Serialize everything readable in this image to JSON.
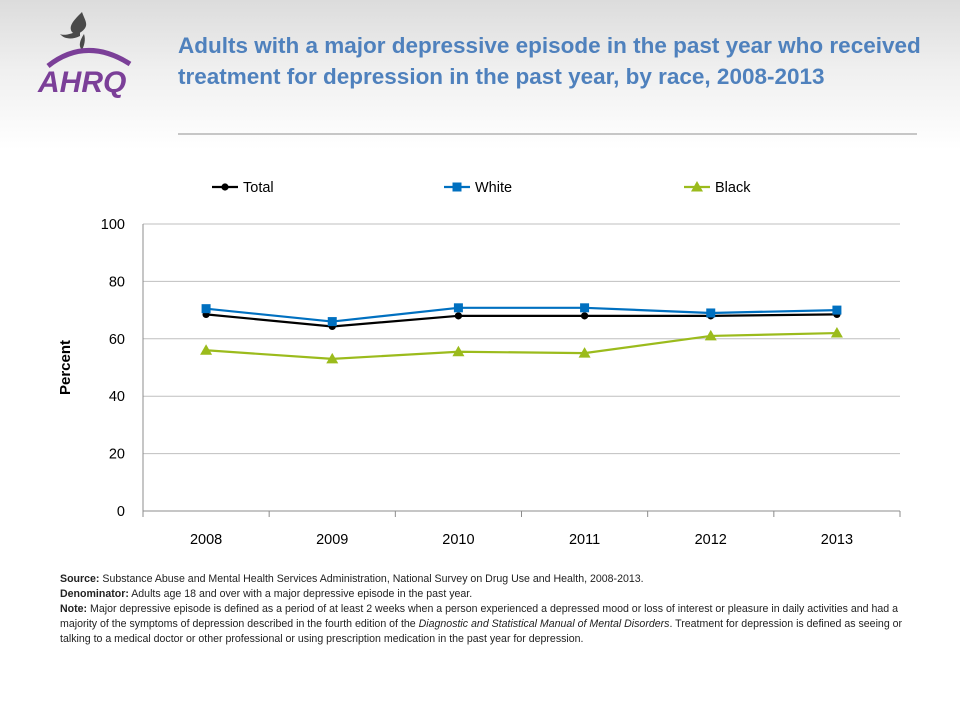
{
  "logo": {
    "text": "AHRQ"
  },
  "title": "Adults with a major depressive episode in the past year who received treatment for depression in the past year, by race, 2008-2013",
  "colors": {
    "title": "#4f81bd",
    "total": "#000000",
    "white": "#0070c0",
    "black": "#9bbb1c"
  },
  "chart_data": {
    "type": "line",
    "title": "",
    "xlabel": "",
    "ylabel": "Percent",
    "x": [
      "2008",
      "2009",
      "2010",
      "2011",
      "2012",
      "2013"
    ],
    "ylim": [
      0,
      100
    ],
    "yticks": [
      "0",
      "20",
      "40",
      "60",
      "80",
      "100"
    ],
    "grid": "horizontal",
    "legend_position": "top",
    "series": [
      {
        "name": "Total",
        "color": "#000000",
        "marker": "circle",
        "values": [
          68.5,
          64.3,
          68.0,
          68.0,
          68.0,
          68.5
        ]
      },
      {
        "name": "White",
        "color": "#0070c0",
        "marker": "square",
        "values": [
          70.5,
          66.0,
          70.8,
          70.8,
          69.0,
          70.0
        ]
      },
      {
        "name": "Black",
        "color": "#9bbb1c",
        "marker": "triangle",
        "values": [
          56.0,
          53.0,
          55.5,
          55.0,
          61.0,
          62.0
        ]
      }
    ]
  },
  "notes": {
    "source_label": "Source:",
    "source_text": " Substance Abuse and Mental Health Services Administration, National Survey on Drug Use and Health, 2008-2013.",
    "denominator_label": "Denominator:",
    "denominator_text": " Adults age 18 and over with a major depressive episode in the past year.",
    "note_label": "Note:",
    "note_text_1": " Major depressive episode is defined as a period of at least 2 weeks when a person experienced a depressed mood or loss of interest or pleasure in daily activities and had a majority of the symptoms of depression described in the fourth edition of the ",
    "note_italic": "Diagnostic and Statistical Manual of Mental Disorders",
    "note_text_2": ". Treatment for depression is defined as seeing or talking to a medical doctor or other professional or using prescription medication in the past year for depression."
  }
}
